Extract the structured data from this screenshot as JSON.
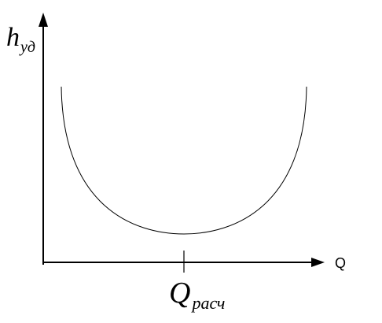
{
  "y_axis": {
    "label": "h",
    "subscript": "уд"
  },
  "x_axis": {
    "label": "Q"
  },
  "marker": {
    "label": "Q",
    "subscript": "расч"
  }
}
